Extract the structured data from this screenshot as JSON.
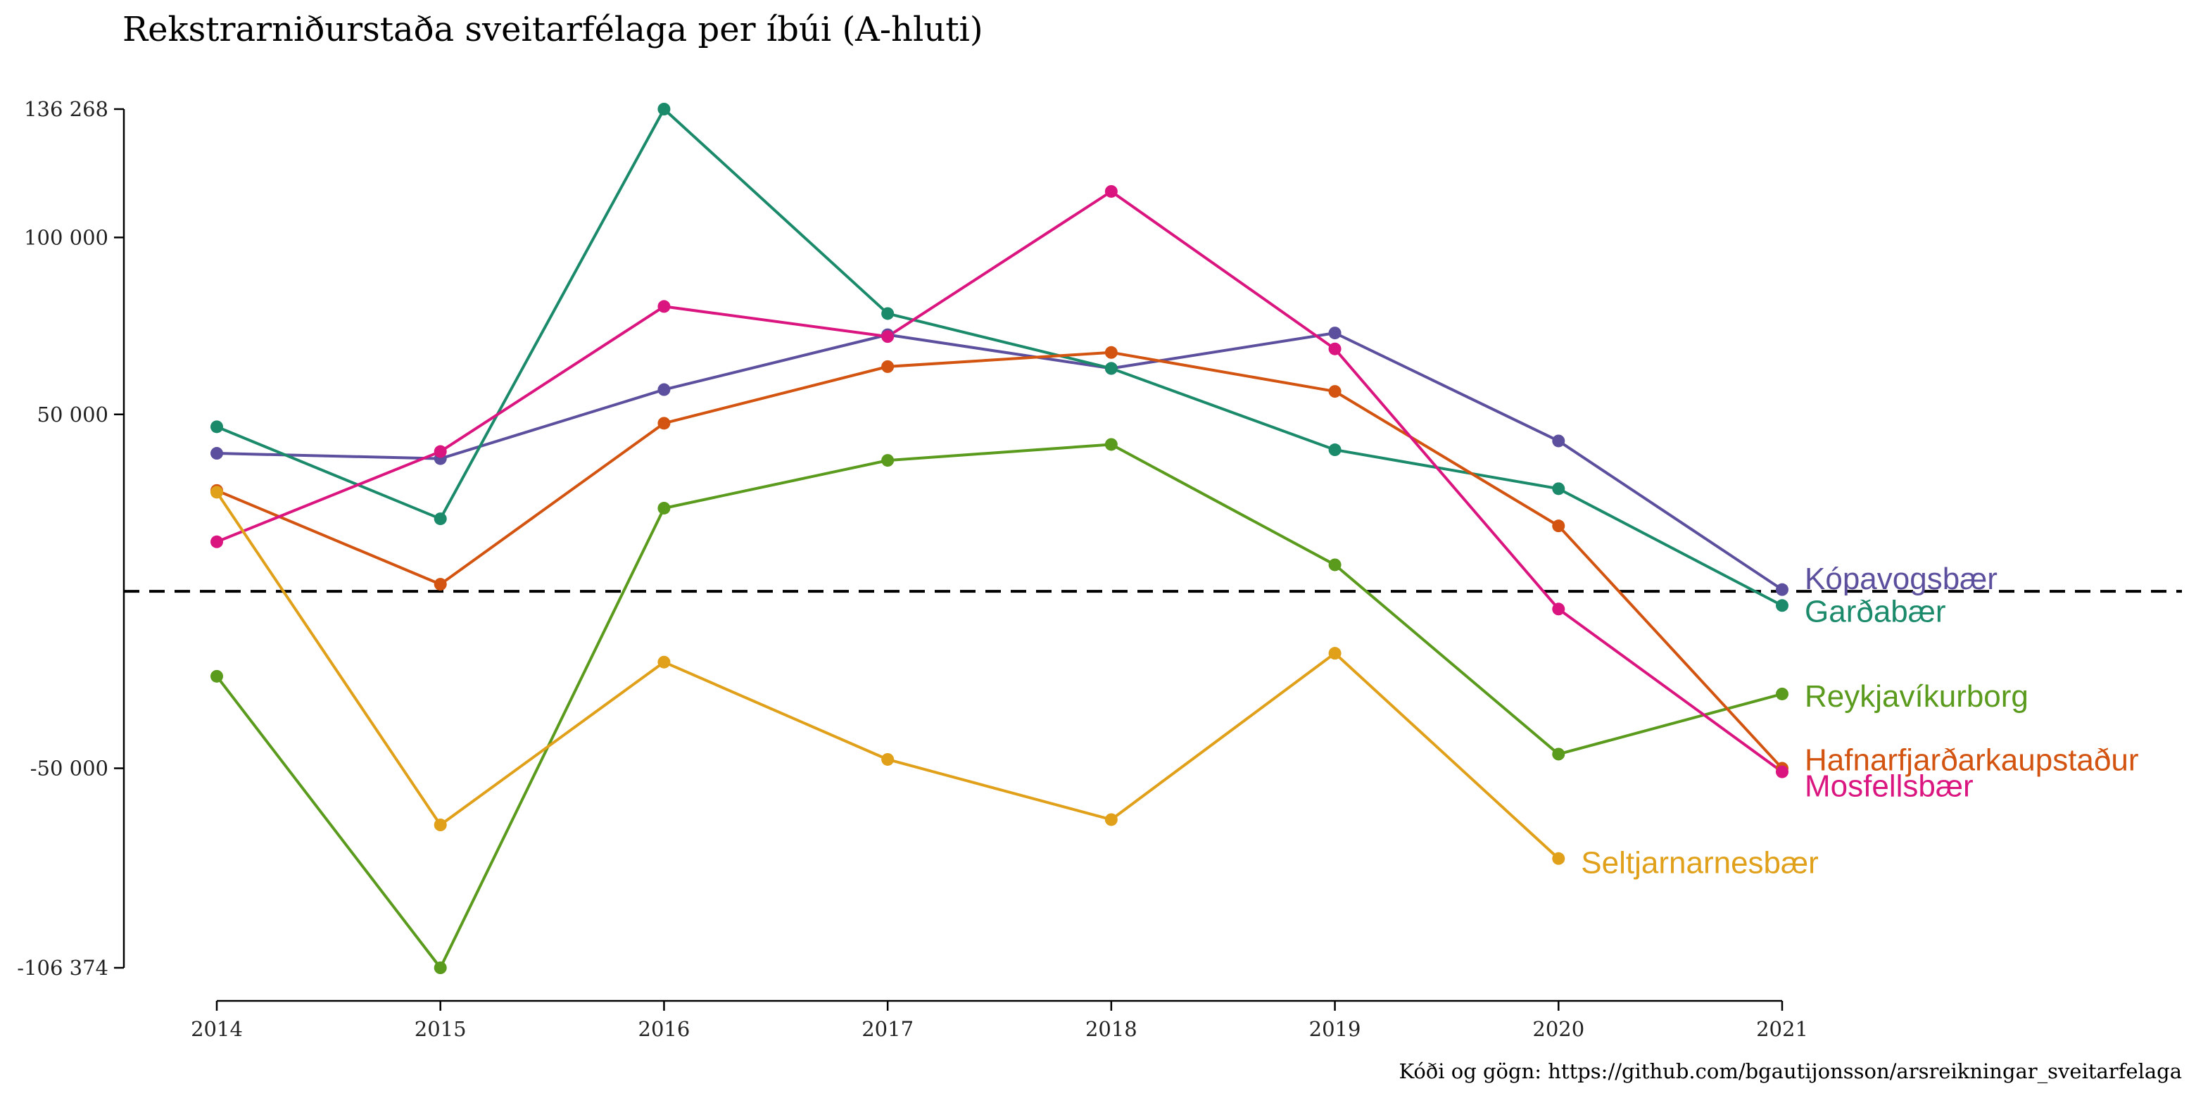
{
  "chart_data": {
    "type": "line",
    "title": "Rekstrarniðurstaða sveitarfélaga per íbúi (A-hluti)",
    "caption": "Kóði og gögn: https://github.com/bgautijonsson/arsreikningar_sveitarfelaga",
    "x": [
      2014,
      2015,
      2016,
      2017,
      2018,
      2019,
      2020,
      2021
    ],
    "x_tick_labels": [
      "2014",
      "2015",
      "2016",
      "2017",
      "2018",
      "2019",
      "2020",
      "2021"
    ],
    "ylim": [
      -106374,
      136268
    ],
    "y_ticks": [
      -106374,
      -50000,
      50000,
      100000,
      136268
    ],
    "y_tick_labels": [
      "-106 374",
      "-50 000",
      "50 000",
      "100 000",
      "136 268"
    ],
    "reference_line": 0,
    "grid": false,
    "legend": "direct-labels-right",
    "series": [
      {
        "name": "Kópavogsbær",
        "color": "#5C4F9E",
        "values": [
          39000,
          37500,
          57000,
          72500,
          63000,
          73000,
          42500,
          500
        ],
        "label_y": 3600
      },
      {
        "name": "Garðabær",
        "color": "#1B8A6B",
        "values": [
          46500,
          20500,
          136268,
          78500,
          63000,
          40000,
          29000,
          -4000
        ],
        "label_y": -5600
      },
      {
        "name": "Reykjavíkurborg",
        "color": "#5A9A1C",
        "values": [
          -24000,
          -106374,
          23500,
          37000,
          41500,
          7500,
          -46000,
          -29000
        ],
        "label_y": -29600
      },
      {
        "name": "Hafnarfjarðarkaupstaður",
        "color": "#D25410",
        "values": [
          28500,
          2000,
          47500,
          63500,
          67500,
          56500,
          18500,
          -50000
        ],
        "label_y": -47600
      },
      {
        "name": "Mosfellsbær",
        "color": "#DA1580",
        "values": [
          14000,
          39500,
          80500,
          72000,
          113000,
          68500,
          -5000,
          -51000
        ],
        "label_y": -55000
      },
      {
        "name": "Seltjarnarnesbær",
        "color": "#E0A01A",
        "values": [
          28000,
          -66000,
          -20000,
          -47500,
          -64500,
          -17500,
          -75500,
          null
        ],
        "label_y": -76600
      }
    ]
  }
}
